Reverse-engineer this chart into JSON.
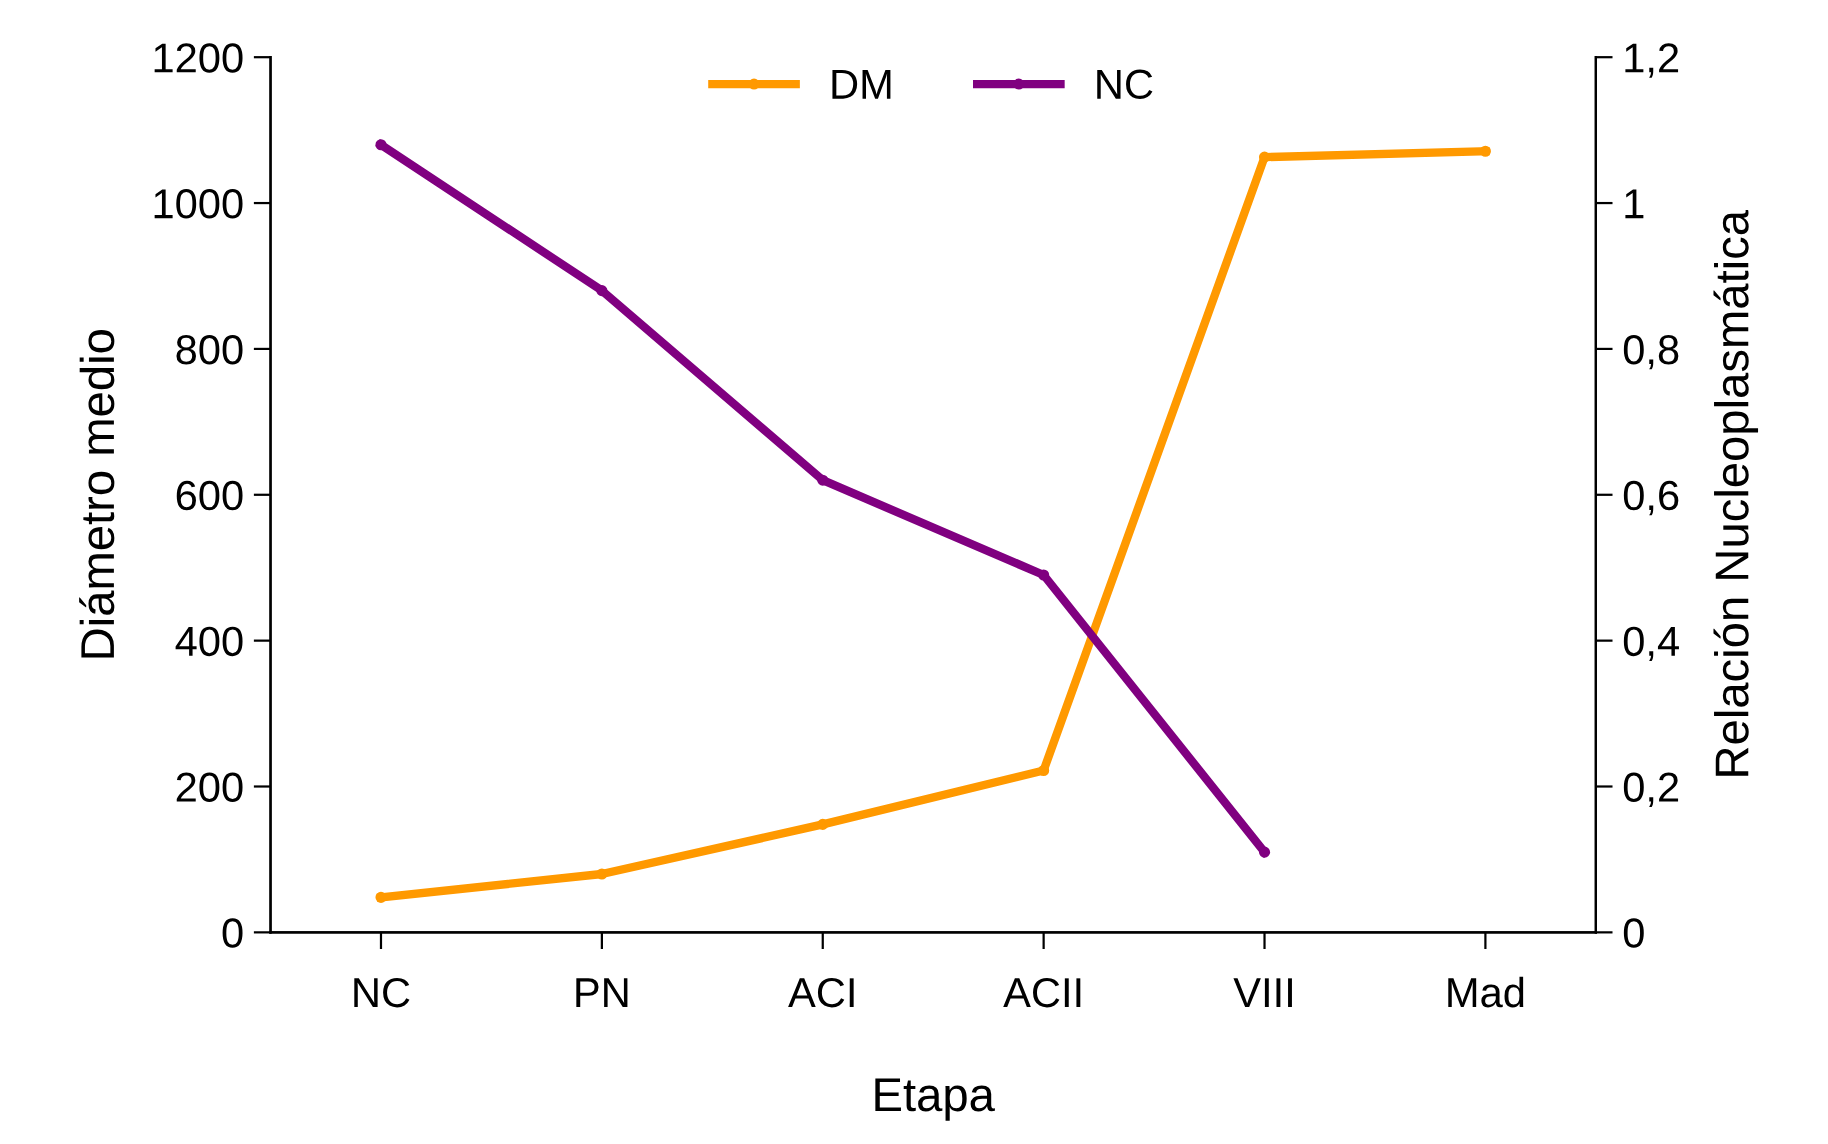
{
  "chart_data": {
    "type": "line",
    "xlabel": "Etapa",
    "ylabel": "Diámetro medio",
    "y2label": "Relación Nucleoplasmática",
    "categories": [
      "NC",
      "PN",
      "ACI",
      "ACII",
      "VIII",
      "Mad"
    ],
    "series": [
      {
        "name": "DM",
        "color": "#ff9900",
        "values": [
          48,
          80,
          148,
          222,
          1063,
          1071
        ]
      },
      {
        "name": "NC",
        "color": "#800080",
        "axis": "y2",
        "values": [
          1.08,
          0.88,
          0.62,
          0.49,
          0.11,
          null
        ]
      }
    ],
    "ylim": [
      0,
      1200
    ],
    "yticks": [
      0,
      200,
      400,
      600,
      800,
      1000,
      1200
    ],
    "y2lim": [
      0,
      1.2
    ],
    "y2ticks": [
      0,
      {
        "value": 0.2,
        "label": "0,2"
      },
      {
        "value": 0.4,
        "label": "0,4"
      },
      {
        "value": 0.6,
        "label": "0,6"
      },
      {
        "value": 0.8,
        "label": "0,8"
      },
      1,
      {
        "value": 1.2,
        "label": "1,2"
      }
    ],
    "legend": "top",
    "grid": false,
    "marker": "circle",
    "line_style": "solid"
  }
}
